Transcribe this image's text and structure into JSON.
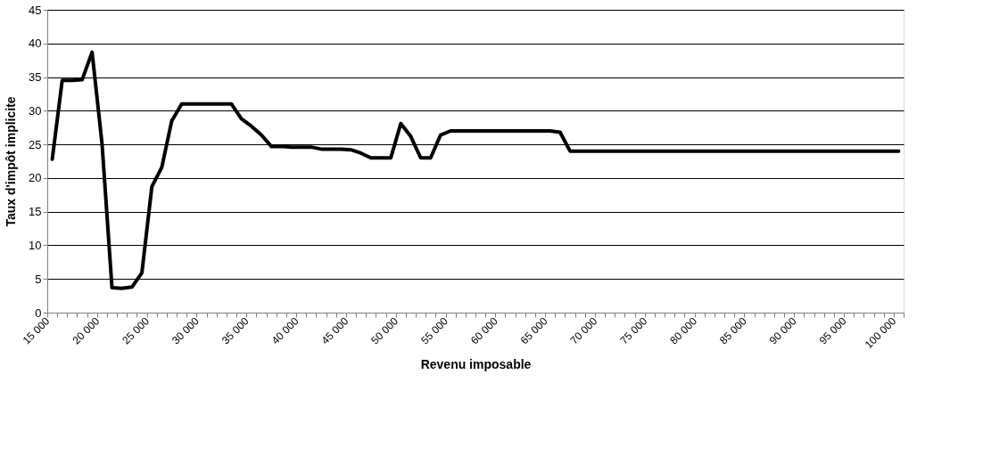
{
  "chart_data": {
    "type": "line",
    "xlabel": "Revenu imposable",
    "ylabel": "Taux d'impôt implicite",
    "x": [
      15500,
      16500,
      17500,
      18500,
      19500,
      20500,
      21500,
      22500,
      23500,
      24500,
      25500,
      26500,
      27500,
      28500,
      29500,
      30500,
      31500,
      32500,
      33500,
      34500,
      35500,
      36500,
      37500,
      38500,
      39500,
      40500,
      41500,
      42500,
      43500,
      44500,
      45500,
      46500,
      47500,
      48500,
      49500,
      50500,
      51500,
      52500,
      53500,
      54500,
      55500,
      56500,
      57500,
      58500,
      59500,
      60500,
      61500,
      62500,
      63500,
      64500,
      65500,
      66500,
      67500,
      68500,
      69500,
      70500,
      71500,
      72500,
      73500,
      74500,
      75500,
      76500,
      77500,
      78500,
      79500,
      80500,
      81500,
      82500,
      83500,
      84500,
      85500,
      86500,
      87500,
      88500,
      89500,
      90500,
      91500,
      92500,
      93500,
      94500,
      95500,
      96500,
      97500,
      98500,
      99500,
      100500
    ],
    "series": [
      {
        "color": "#000000",
        "values": [
          22.8,
          34.5,
          34.5,
          34.6,
          38.7,
          25.1,
          3.7,
          3.6,
          3.8,
          5.9,
          18.7,
          21.6,
          28.5,
          31.0,
          31.0,
          31.0,
          31.0,
          31.0,
          31.0,
          28.8,
          27.7,
          26.4,
          24.7,
          24.7,
          24.6,
          24.6,
          24.6,
          24.3,
          24.3,
          24.3,
          24.2,
          23.7,
          23.0,
          23.0,
          23.0,
          28.1,
          26.2,
          23.0,
          23.0,
          26.4,
          27.0,
          27.0,
          27.0,
          27.0,
          27.0,
          27.0,
          27.0,
          27.0,
          27.0,
          27.0,
          27.0,
          26.8,
          24.0,
          24.0,
          24.0,
          24.0,
          24.0,
          24.0,
          24.0,
          24.0,
          24.0,
          24.0,
          24.0,
          24.0,
          24.0,
          24.0,
          24.0,
          24.0,
          24.0,
          24.0,
          24.0,
          24.0,
          24.0,
          24.0,
          24.0,
          24.0,
          24.0,
          24.0,
          24.0,
          24.0,
          24.0,
          24.0,
          24.0,
          24.0,
          24.0,
          24.0
        ]
      }
    ],
    "xlim": [
      15000,
      101000
    ],
    "xticks": [
      {
        "value": 15000,
        "label": "15 000"
      },
      {
        "value": 16000,
        "label": null
      },
      {
        "value": 17000,
        "label": null
      },
      {
        "value": 18000,
        "label": null
      },
      {
        "value": 19000,
        "label": null
      },
      {
        "value": 20000,
        "label": "20 000"
      },
      {
        "value": 21000,
        "label": null
      },
      {
        "value": 22000,
        "label": null
      },
      {
        "value": 23000,
        "label": null
      },
      {
        "value": 24000,
        "label": null
      },
      {
        "value": 25000,
        "label": "25 000"
      },
      {
        "value": 26000,
        "label": null
      },
      {
        "value": 27000,
        "label": null
      },
      {
        "value": 28000,
        "label": null
      },
      {
        "value": 29000,
        "label": null
      },
      {
        "value": 30000,
        "label": "30 000"
      },
      {
        "value": 31000,
        "label": null
      },
      {
        "value": 32000,
        "label": null
      },
      {
        "value": 33000,
        "label": null
      },
      {
        "value": 34000,
        "label": null
      },
      {
        "value": 35000,
        "label": "35 000"
      },
      {
        "value": 36000,
        "label": null
      },
      {
        "value": 37000,
        "label": null
      },
      {
        "value": 38000,
        "label": null
      },
      {
        "value": 39000,
        "label": null
      },
      {
        "value": 40000,
        "label": "40 000"
      },
      {
        "value": 41000,
        "label": null
      },
      {
        "value": 42000,
        "label": null
      },
      {
        "value": 43000,
        "label": null
      },
      {
        "value": 44000,
        "label": null
      },
      {
        "value": 45000,
        "label": "45 000"
      },
      {
        "value": 46000,
        "label": null
      },
      {
        "value": 47000,
        "label": null
      },
      {
        "value": 48000,
        "label": null
      },
      {
        "value": 49000,
        "label": null
      },
      {
        "value": 50000,
        "label": "50 000"
      },
      {
        "value": 51000,
        "label": null
      },
      {
        "value": 52000,
        "label": null
      },
      {
        "value": 53000,
        "label": null
      },
      {
        "value": 54000,
        "label": null
      },
      {
        "value": 55000,
        "label": "55 000"
      },
      {
        "value": 56000,
        "label": null
      },
      {
        "value": 57000,
        "label": null
      },
      {
        "value": 58000,
        "label": null
      },
      {
        "value": 59000,
        "label": null
      },
      {
        "value": 60000,
        "label": "60 000"
      },
      {
        "value": 61000,
        "label": null
      },
      {
        "value": 62000,
        "label": null
      },
      {
        "value": 63000,
        "label": null
      },
      {
        "value": 64000,
        "label": null
      },
      {
        "value": 65000,
        "label": "65 000"
      },
      {
        "value": 66000,
        "label": null
      },
      {
        "value": 67000,
        "label": null
      },
      {
        "value": 68000,
        "label": null
      },
      {
        "value": 69000,
        "label": null
      },
      {
        "value": 70000,
        "label": "70 000"
      },
      {
        "value": 71000,
        "label": null
      },
      {
        "value": 72000,
        "label": null
      },
      {
        "value": 73000,
        "label": null
      },
      {
        "value": 74000,
        "label": null
      },
      {
        "value": 75000,
        "label": "75 000"
      },
      {
        "value": 76000,
        "label": null
      },
      {
        "value": 77000,
        "label": null
      },
      {
        "value": 78000,
        "label": null
      },
      {
        "value": 79000,
        "label": null
      },
      {
        "value": 80000,
        "label": "80 000"
      },
      {
        "value": 81000,
        "label": null
      },
      {
        "value": 82000,
        "label": null
      },
      {
        "value": 83000,
        "label": null
      },
      {
        "value": 84000,
        "label": null
      },
      {
        "value": 85000,
        "label": "85 000"
      },
      {
        "value": 86000,
        "label": null
      },
      {
        "value": 87000,
        "label": null
      },
      {
        "value": 88000,
        "label": null
      },
      {
        "value": 89000,
        "label": null
      },
      {
        "value": 90000,
        "label": "90 000"
      },
      {
        "value": 91000,
        "label": null
      },
      {
        "value": 92000,
        "label": null
      },
      {
        "value": 93000,
        "label": null
      },
      {
        "value": 94000,
        "label": null
      },
      {
        "value": 95000,
        "label": "95 000"
      },
      {
        "value": 96000,
        "label": null
      },
      {
        "value": 97000,
        "label": null
      },
      {
        "value": 98000,
        "label": null
      },
      {
        "value": 99000,
        "label": null
      },
      {
        "value": 100000,
        "label": "100 000"
      },
      {
        "value": 101000,
        "label": null
      }
    ],
    "ylim": [
      0,
      45
    ],
    "yticks": [
      0,
      5,
      10,
      15,
      20,
      25,
      30,
      35,
      40,
      45
    ],
    "grid": "y",
    "legend": false,
    "marker": "none",
    "line_style": "solid"
  }
}
